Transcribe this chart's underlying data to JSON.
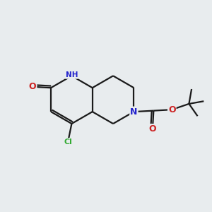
{
  "bg_color": "#e8ecee",
  "bond_color": "#1a1a1a",
  "bond_width": 1.6,
  "atom_colors": {
    "N": "#2222cc",
    "O": "#cc2222",
    "Cl": "#33aa33",
    "H": "#888888",
    "C": "#1a1a1a"
  },
  "figsize": [
    3.0,
    3.0
  ],
  "dpi": 100,
  "xlim": [
    0,
    10
  ],
  "ylim": [
    0,
    10
  ]
}
